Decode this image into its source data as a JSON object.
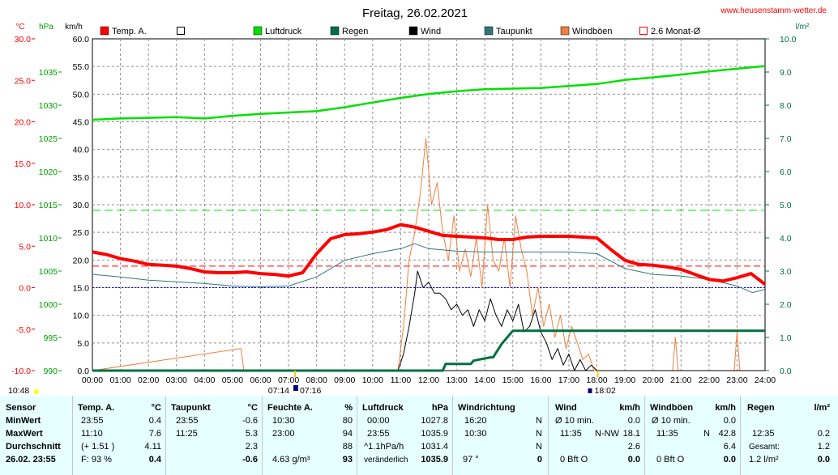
{
  "title": "Freitag, 26.02.2021",
  "website": "www.heusenstamm-wetter.de",
  "units_left": [
    "°C",
    "hPa",
    "km/h"
  ],
  "unit_right": "l/m²",
  "legend": [
    {
      "name": "Temp. A.",
      "color": "#ff0000",
      "kind": "filled"
    },
    {
      "name": "",
      "color": "#000000",
      "kind": "hollow"
    },
    {
      "name": "Luftdruck",
      "color": "#00e000",
      "kind": "filled"
    },
    {
      "name": "Regen",
      "color": "#007040",
      "kind": "filled"
    },
    {
      "name": "Wind",
      "color": "#000000",
      "kind": "filled"
    },
    {
      "name": "Taupunkt",
      "color": "#307878",
      "kind": "filled"
    },
    {
      "name": "Windböen",
      "color": "#f08040",
      "kind": "filled"
    },
    {
      "name": "2.6 Monat-Ø",
      "color": "#ff0000",
      "kind": "hollow"
    }
  ],
  "axes": {
    "temp_ticks": [
      "30.0",
      "25.0",
      "20.0",
      "15.0",
      "10.0",
      "5.0",
      "0.0",
      "-5.0",
      "-10.0"
    ],
    "pressure_ticks": [
      "1035",
      "1030",
      "1025",
      "1020",
      "1015",
      "1010",
      "1005",
      "1000",
      "995",
      "990"
    ],
    "wind_ticks": [
      "60.0",
      "55.0",
      "50.0",
      "45.0",
      "40.0",
      "35.0",
      "30.0",
      "25.0",
      "20.0",
      "15.0",
      "10.0",
      "5.0",
      "0.0"
    ],
    "rain_ticks": [
      "10.0",
      "9.0",
      "8.0",
      "7.0",
      "6.0",
      "5.0",
      "4.0",
      "3.0",
      "2.0",
      "1.0",
      "0.0"
    ],
    "time_ticks": [
      "00:00",
      "01:00",
      "02:00",
      "03:00",
      "04:00",
      "05:00",
      "06:00",
      "07:00",
      "08:00",
      "09:00",
      "10:00",
      "11:00",
      "12:00",
      "13:00",
      "14:00",
      "15:00",
      "16:00",
      "17:00",
      "18:00",
      "19:00",
      "20:00",
      "21:00",
      "22:00",
      "23:00",
      "24:00"
    ]
  },
  "sun_labels": {
    "sunrise_marker": "10:48",
    "sunrise": "07:14",
    "solar_noon": "07:16",
    "sunset": "18:02"
  },
  "chart_data": {
    "type": "line",
    "x_unit": "hours",
    "xlim": [
      0,
      24
    ],
    "axes_ranges": {
      "temperature_c": [
        -10,
        30
      ],
      "pressure_hpa": [
        990,
        1040
      ],
      "wind_kmh": [
        0,
        60
      ],
      "rain_lm2": [
        0,
        10
      ]
    },
    "grid": true,
    "series": [
      {
        "name": "Temp. A.",
        "axis": "temperature_c",
        "color": "#ff0000",
        "x": [
          0,
          0.5,
          1,
          1.5,
          2,
          2.5,
          3,
          3.5,
          4,
          4.5,
          5,
          5.5,
          6,
          6.5,
          7,
          7.5,
          8,
          8.5,
          9,
          9.5,
          10,
          10.5,
          11,
          11.5,
          12,
          12.5,
          13,
          13.5,
          14,
          14.5,
          15,
          15.5,
          16,
          16.5,
          17,
          17.5,
          18,
          18.5,
          19,
          19.5,
          20,
          20.5,
          21,
          21.5,
          22,
          22.5,
          23,
          23.5,
          24
        ],
        "y": [
          4.3,
          4.0,
          3.5,
          3.2,
          2.8,
          2.7,
          2.6,
          2.3,
          1.9,
          1.8,
          1.8,
          1.9,
          1.7,
          1.6,
          1.4,
          1.8,
          4.1,
          5.9,
          6.4,
          6.5,
          6.7,
          7.0,
          7.6,
          7.3,
          6.8,
          6.3,
          6.2,
          6.1,
          6.0,
          5.8,
          5.8,
          6.1,
          6.2,
          6.2,
          6.2,
          6.1,
          6.0,
          4.6,
          3.3,
          2.8,
          2.7,
          2.5,
          2.2,
          1.6,
          1.0,
          0.8,
          1.2,
          1.7,
          0.4
        ]
      },
      {
        "name": "Taupunkt",
        "axis": "temperature_c",
        "color": "#307878",
        "x": [
          0,
          1,
          2,
          3,
          4,
          5,
          6,
          7,
          8,
          9,
          10,
          11,
          11.5,
          12,
          13,
          14,
          15,
          16,
          17,
          18,
          19,
          20,
          21,
          22,
          23,
          23.55,
          24
        ],
        "y": [
          1.6,
          1.3,
          0.9,
          0.7,
          0.5,
          0.2,
          0.1,
          0.2,
          1.3,
          3.3,
          4.1,
          4.7,
          5.3,
          4.7,
          4.4,
          4.3,
          4.3,
          4.3,
          4.3,
          4.1,
          2.3,
          1.6,
          1.4,
          1.0,
          0.2,
          -0.6,
          -0.2
        ]
      },
      {
        "name": "Luftdruck",
        "axis": "pressure_hpa",
        "color": "#00e000",
        "x": [
          0,
          1,
          2,
          3,
          4,
          5,
          6,
          7,
          8,
          9,
          10,
          11,
          12,
          13,
          14,
          15,
          16,
          17,
          18,
          19,
          20,
          21,
          22,
          23,
          24
        ],
        "y": [
          1027.8,
          1028.0,
          1028.1,
          1028.2,
          1028.0,
          1028.4,
          1028.7,
          1028.9,
          1029.1,
          1029.7,
          1030.4,
          1031.1,
          1031.7,
          1032.1,
          1032.4,
          1032.5,
          1032.6,
          1032.9,
          1033.2,
          1033.8,
          1034.2,
          1034.6,
          1035.1,
          1035.5,
          1035.9
        ]
      },
      {
        "name": "Wind",
        "axis": "wind_kmh",
        "color": "#000000",
        "x": [
          0,
          10.9,
          11.1,
          11.3,
          11.5,
          11.6,
          11.8,
          12,
          12.2,
          12.4,
          12.6,
          12.8,
          13,
          13.2,
          13.4,
          13.6,
          13.8,
          14,
          14.2,
          14.4,
          14.6,
          14.8,
          15,
          15.2,
          15.4,
          15.6,
          15.8,
          16,
          16.2,
          16.4,
          16.6,
          16.8,
          17,
          17.2,
          17.4,
          17.6,
          17.8,
          18,
          24
        ],
        "y": [
          0,
          0,
          3,
          8,
          14,
          18,
          15,
          16,
          14,
          14,
          13,
          11,
          12,
          10,
          11,
          8,
          11,
          9,
          13,
          10,
          8,
          11,
          9,
          12,
          7,
          8,
          11,
          7,
          5,
          2,
          4,
          1,
          3,
          0,
          2,
          0,
          1,
          0,
          0
        ]
      },
      {
        "name": "Windböen",
        "axis": "wind_kmh",
        "color": "#f08040",
        "x": [
          0,
          5.3,
          5.4,
          5.5,
          10.9,
          11.1,
          11.3,
          11.5,
          11.7,
          11.9,
          12.1,
          12.3,
          12.5,
          12.7,
          12.9,
          13.1,
          13.3,
          13.5,
          13.7,
          13.9,
          14.1,
          14.3,
          14.5,
          14.7,
          14.9,
          15.1,
          15.3,
          15.5,
          15.7,
          15.9,
          16.1,
          16.3,
          16.5,
          16.7,
          16.9,
          17.1,
          17.3,
          17.5,
          17.7,
          17.9,
          18,
          20.7,
          20.8,
          20.9,
          21,
          22.9,
          23,
          23.1,
          24
        ],
        "y": [
          0,
          4,
          0,
          0,
          0,
          8,
          20,
          25,
          32,
          42,
          30,
          34,
          25,
          20,
          28,
          18,
          22,
          17,
          24,
          15,
          30,
          20,
          18,
          24,
          15,
          28,
          22,
          18,
          10,
          15,
          8,
          12,
          6,
          10,
          4,
          8,
          5,
          2,
          3,
          0,
          0,
          0,
          6,
          0,
          0,
          0,
          7,
          0,
          0
        ]
      },
      {
        "name": "Regen",
        "axis": "rain_lm2",
        "color": "#007040",
        "x": [
          0,
          12.5,
          12.6,
          13.5,
          13.6,
          14.2,
          14.3,
          14.6,
          14.8,
          15,
          24
        ],
        "y": [
          0,
          0,
          0.2,
          0.2,
          0.3,
          0.4,
          0.4,
          0.8,
          1.0,
          1.2,
          1.2
        ]
      }
    ],
    "reference_lines": [
      {
        "label": "2.6 Monat-Ø",
        "axis": "temperature_c",
        "value": 2.6,
        "color": "#ff0000"
      },
      {
        "label": "0 °C",
        "axis": "temperature_c",
        "value": 0,
        "color": "#0000ff"
      },
      {
        "label": "",
        "axis": "wind_kmh",
        "value": 29,
        "color": "#00e000"
      }
    ]
  },
  "table": {
    "rowlabels": {
      "header": "Sensor",
      "min": "MinWert",
      "max": "MaxWert",
      "avg": "Durchschnitt",
      "now": "26.02. 23:55"
    },
    "temp": {
      "h": "Temp. A.",
      "u": "°C",
      "min_t": "23:55",
      "min_v": "0.4",
      "max_t": "11:10",
      "max_v": "7.6",
      "avg_t": "(+ 1.51 )",
      "avg_v": "4.11",
      "now_t": "F: 93 %",
      "now_v": "0.4"
    },
    "dew": {
      "h": "Taupunkt",
      "u": "°C",
      "min_t": "23:55",
      "min_v": "-0.6",
      "max_t": "11:25",
      "max_v": "5.3",
      "avg_v": "2.3",
      "now_v": "-0.6"
    },
    "hum": {
      "h": "Feuchte A.",
      "u": "%",
      "min_t": "10:30",
      "min_v": "80",
      "max_t": "23:00",
      "max_v": "94",
      "avg_v": "88",
      "now_t": "4.63 g/m³",
      "now_v": "93"
    },
    "press": {
      "h": "Luftdruck",
      "u": "hPa",
      "min_t": "00:00",
      "min_v": "1027.8",
      "max_t": "23:55",
      "max_v": "1035.9",
      "avg_t": "^1.1hPa/h",
      "avg_v": "1031.4",
      "now_t": "veränderlich",
      "now_v": "1035.9"
    },
    "dir": {
      "h": "Windrichtung",
      "min_t": "16:20",
      "min_v": "N",
      "max_t": "10:30",
      "max_v": "N",
      "avg_v": "N",
      "now_t": "97 °",
      "now_v": "0"
    },
    "wind": {
      "h": "Wind",
      "u": "km/h",
      "min_t": "Ø 10 min.",
      "min_v": "0.0",
      "max_t": "11:35",
      "max_m": "N-NW",
      "max_v": "18.1",
      "avg_v": "2.6",
      "now_t": "0 Bft O",
      "now_v": "0.0"
    },
    "gust": {
      "h": "Windböen",
      "u": "km/h",
      "min_t": "Ø 10 min.",
      "min_v": "0.0",
      "max_t": "11:35",
      "max_m": "N",
      "max_v": "42.8",
      "avg_v": "6.4",
      "now_t": "0 Bft O",
      "now_v": "0.0"
    },
    "rain": {
      "h": "Regen",
      "u": "l/m²",
      "max_t": "12:35",
      "max_v": "0.2",
      "avg_t": "Gesamt:",
      "avg_v": "1.2",
      "now_t": "1.2 l/m²",
      "now_v": "0.0"
    }
  }
}
